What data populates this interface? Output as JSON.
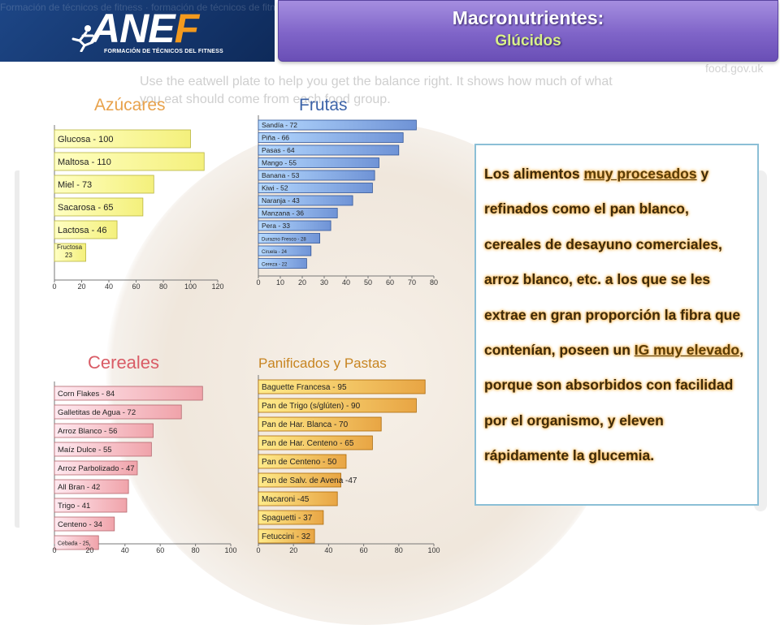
{
  "header": {
    "logo_text": "ANEF",
    "logo_subtitle": "FORMACIÓN DE TÉCNICOS DEL FITNESS",
    "logo_watermark": "Formación de técnicos de fitness · formación de técnicos de fitness",
    "title": "Macronutrientes:",
    "subtitle": "Glúcidos"
  },
  "background": {
    "plate_text": "Use the eatwell plate to help you get the balance right. It shows how much of what you eat should come from each food group.",
    "site_text": "food.gov.uk",
    "colors": {
      "plate": "#efe6dc",
      "text": "#cfcfcf"
    }
  },
  "text_panel": {
    "parts": [
      {
        "text": "Los alimentos ",
        "highlight": false
      },
      {
        "text": "muy procesados",
        "highlight": true
      },
      {
        "text": " y refinados como el pan blanco, cereales de desayuno comerciales, arroz blanco, etc. a los que se les extrae en gran proporción la fibra que contenían, poseen un ",
        "highlight": false
      },
      {
        "text": "IG muy elevado",
        "highlight": true
      },
      {
        "text": ", porque son absorbidos con facilidad por el organismo, y eleven rápidamente la glucemia.",
        "highlight": false
      }
    ]
  },
  "chart_data": [
    {
      "type": "bar",
      "orientation": "horizontal",
      "title": "Azúcares",
      "categories": [
        "Glucosa - 100",
        "Maltosa - 110",
        "Miel - 73",
        "Sacarosa - 65",
        "Lactosa - 46",
        "Fructosa 23"
      ],
      "values": [
        100,
        110,
        73,
        65,
        46,
        23
      ],
      "xlim": [
        0,
        120
      ],
      "xticks": [
        0,
        20,
        40,
        60,
        80,
        100,
        120
      ],
      "color": "#f4f07c",
      "grid": false
    },
    {
      "type": "bar",
      "orientation": "horizontal",
      "title": "Frutas",
      "categories": [
        "Sandía - 72",
        "Piña - 66",
        "Pasas - 64",
        "Mango - 55",
        "Banana - 53",
        "Kiwi - 52",
        "Naranja - 43",
        "Manzana - 36",
        "Pera - 33",
        "Durazno Fresco - 28",
        "Ciruela - 24",
        "Cereza - 22"
      ],
      "values": [
        72,
        66,
        64,
        55,
        53,
        52,
        43,
        36,
        33,
        28,
        24,
        22
      ],
      "xlim": [
        0,
        80
      ],
      "xticks": [
        0,
        10,
        20,
        30,
        40,
        50,
        60,
        70,
        80
      ],
      "color": "#6f93d6",
      "grid": false
    },
    {
      "type": "bar",
      "orientation": "horizontal",
      "title": "Cereales",
      "categories": [
        "Corn Flakes - 84",
        "Galletitas de Agua - 72",
        "Arroz Blanco - 56",
        "Maíz Dulce - 55",
        "Arroz Parbolizado - 47",
        "All Bran - 42",
        "Trigo - 41",
        "Centeno - 34",
        "Cebada - 25"
      ],
      "values": [
        84,
        72,
        56,
        55,
        47,
        42,
        41,
        34,
        25
      ],
      "xlim": [
        0,
        100
      ],
      "xticks": [
        0,
        20,
        40,
        60,
        80,
        100
      ],
      "color": "#f0a3aa",
      "grid": false
    },
    {
      "type": "bar",
      "orientation": "horizontal",
      "title": "Panificados y Pastas",
      "categories": [
        "Baguette Francesa - 95",
        "Pan de Trigo (s/glúten) - 90",
        "Pan de Har. Blanca - 70",
        "Pan de Har. Centeno - 65",
        "Pan de Centeno - 50",
        "Pan de Salv. de Avena -47",
        "Macaroni -45",
        "Spaguetti - 37",
        "Fetuccini - 32"
      ],
      "values": [
        95,
        90,
        70,
        65,
        50,
        47,
        45,
        37,
        32
      ],
      "xlim": [
        0,
        100
      ],
      "xticks": [
        0,
        20,
        40,
        60,
        80,
        100
      ],
      "color": "#e8a544",
      "grid": false
    }
  ]
}
